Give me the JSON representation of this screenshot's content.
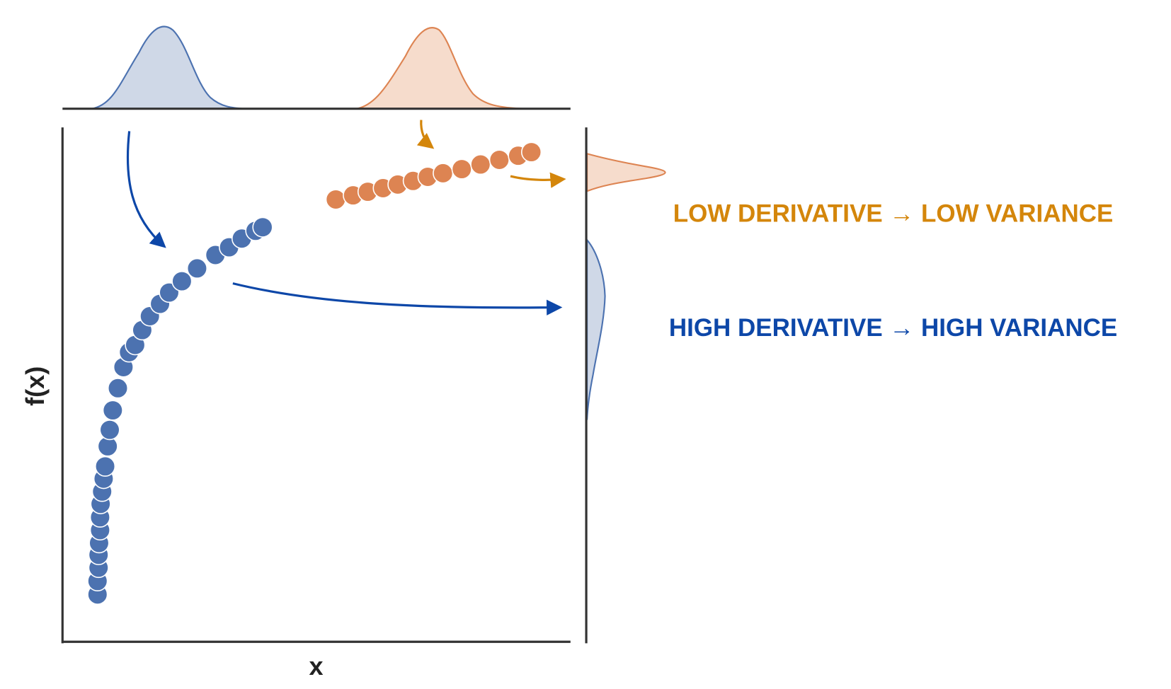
{
  "chart_data": {
    "type": "scatter",
    "xlabel": "x",
    "ylabel": "f(x)",
    "xlim": [
      0,
      10
    ],
    "ylim": [
      0,
      10
    ],
    "series": [
      {
        "color": "#4c72b0",
        "x": [
          0.69,
          0.69,
          0.71,
          0.71,
          0.72,
          0.74,
          0.74,
          0.75,
          0.78,
          0.81,
          0.84,
          0.89,
          0.93,
          0.99,
          1.09,
          1.2,
          1.31,
          1.43,
          1.57,
          1.72,
          1.92,
          2.1,
          2.35,
          2.65,
          3.01,
          3.28,
          3.53,
          3.8,
          3.94
        ],
        "values": [
          0.92,
          1.18,
          1.44,
          1.69,
          1.92,
          2.17,
          2.42,
          2.68,
          2.92,
          3.17,
          3.41,
          3.8,
          4.12,
          4.5,
          4.93,
          5.34,
          5.63,
          5.77,
          6.06,
          6.33,
          6.57,
          6.79,
          7.01,
          7.26,
          7.52,
          7.67,
          7.84,
          7.99,
          8.06
        ]
      },
      {
        "color": "#dd8452",
        "x": [
          5.38,
          5.72,
          6.01,
          6.31,
          6.6,
          6.9,
          7.19,
          7.49,
          7.86,
          8.23,
          8.6,
          8.97,
          9.23
        ],
        "values": [
          8.6,
          8.68,
          8.75,
          8.82,
          8.89,
          8.96,
          9.04,
          9.11,
          9.19,
          9.28,
          9.37,
          9.45,
          9.52
        ]
      }
    ],
    "annotations": [
      {
        "text": "LOW DERIVATIVE → LOW VARIANCE",
        "color": "#d4860b"
      },
      {
        "text": "HIGH DERIVATIVE → HIGH VARIANCE",
        "color": "#0d47a8"
      }
    ]
  }
}
